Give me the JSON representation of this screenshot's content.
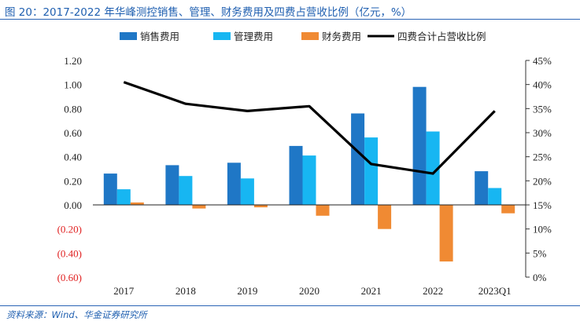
{
  "title": "图 20：2017-2022 年华峰测控销售、管理、财务费用及四费占营收比例（亿元，%）",
  "source": "资料来源：Wind、华金证券研究所",
  "chart_data": {
    "type": "bar",
    "categories": [
      "2017",
      "2018",
      "2019",
      "2020",
      "2021",
      "2022",
      "2023Q1"
    ],
    "series": [
      {
        "name": "销售费用",
        "kind": "bar",
        "color": "#1f77c6",
        "values": [
          0.26,
          0.33,
          0.35,
          0.49,
          0.76,
          0.98,
          0.28
        ]
      },
      {
        "name": "管理费用",
        "kind": "bar",
        "color": "#17b6f2",
        "values": [
          0.13,
          0.24,
          0.22,
          0.41,
          0.56,
          0.61,
          0.14
        ]
      },
      {
        "name": "财务费用",
        "kind": "bar",
        "color": "#f08a33",
        "values": [
          0.02,
          -0.03,
          -0.02,
          -0.09,
          -0.2,
          -0.47,
          -0.07
        ]
      },
      {
        "name": "四费合计占营收比例",
        "kind": "line",
        "axis": "right",
        "color": "#000000",
        "values": [
          40.5,
          36.0,
          34.5,
          35.5,
          23.5,
          21.5,
          34.5
        ]
      }
    ],
    "ylim_left": [
      -0.6,
      1.2
    ],
    "yticks_left": [
      "1.20",
      "1.00",
      "0.80",
      "0.60",
      "0.40",
      "0.20",
      "0.00",
      "(0.20)",
      "(0.40)",
      "(0.60)"
    ],
    "yticks_left_values": [
      1.2,
      1.0,
      0.8,
      0.6,
      0.4,
      0.2,
      0.0,
      -0.2,
      -0.4,
      -0.6
    ],
    "negative_tick_color": "#e02020",
    "ylim_right": [
      0,
      45
    ],
    "yticks_right": [
      "45%",
      "40%",
      "35%",
      "30%",
      "25%",
      "20%",
      "15%",
      "10%",
      "5%",
      "0%"
    ],
    "yticks_right_values": [
      45,
      40,
      35,
      30,
      25,
      20,
      15,
      10,
      5,
      0
    ],
    "legend_position": "top"
  }
}
